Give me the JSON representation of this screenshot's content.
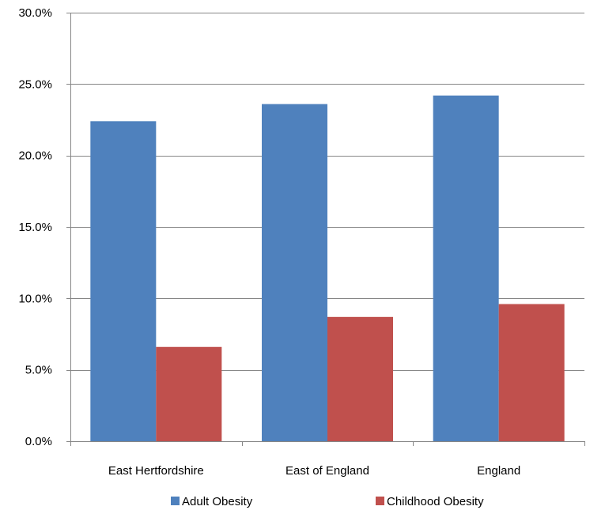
{
  "chart_data": {
    "type": "bar",
    "categories": [
      "East Hertfordshire",
      "East of England",
      "England"
    ],
    "series": [
      {
        "name": "Adult Obesity",
        "color": "#4F81BD",
        "values": [
          22.4,
          23.6,
          24.2
        ]
      },
      {
        "name": "Childhood Obesity",
        "color": "#C0504D",
        "values": [
          6.6,
          8.7,
          9.6
        ]
      }
    ],
    "ylim": [
      0,
      30
    ],
    "y_ticks": [
      "0.0%",
      "5.0%",
      "10.0%",
      "15.0%",
      "20.0%",
      "25.0%",
      "30.0%"
    ],
    "y_tick_values": [
      0,
      5,
      10,
      15,
      20,
      25,
      30
    ],
    "title": "",
    "xlabel": "",
    "ylabel": "",
    "grid": true,
    "legend_position": "bottom"
  },
  "colors": {
    "grid": "#868686",
    "axis": "#868686"
  }
}
